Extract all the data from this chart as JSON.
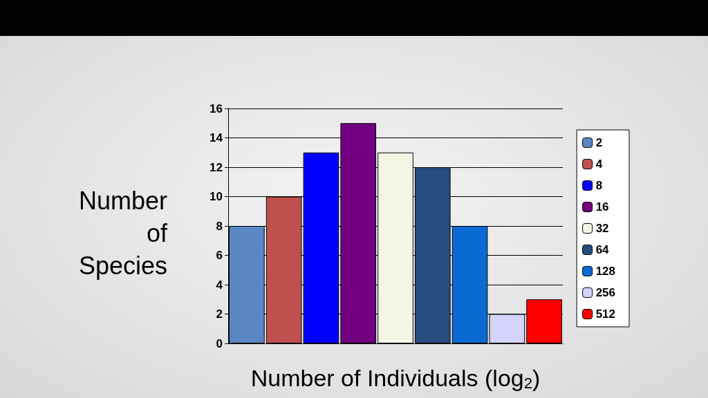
{
  "chart_data": {
    "type": "bar",
    "xlabel": "Number of Individuals (log$_{2}$)",
    "ylabel": "Number\nof\nSpecies",
    "categories": [
      null,
      null,
      null,
      null,
      null,
      null,
      null,
      null,
      null
    ],
    "series": [
      {
        "name": "2",
        "color": "#5b87c5",
        "values": [
          8,
          null,
          null,
          null,
          null,
          null,
          null,
          null,
          null
        ]
      },
      {
        "name": "4",
        "color": "#c0504d",
        "values": [
          null,
          10,
          null,
          null,
          null,
          null,
          null,
          null,
          null
        ]
      },
      {
        "name": "8",
        "color": "#0000ff",
        "values": [
          null,
          null,
          13,
          null,
          null,
          null,
          null,
          null,
          null
        ]
      },
      {
        "name": "16",
        "color": "#730080",
        "values": [
          null,
          null,
          null,
          15,
          null,
          null,
          null,
          null,
          null
        ]
      },
      {
        "name": "32",
        "color": "#f5f5e6",
        "values": [
          null,
          null,
          null,
          null,
          13,
          null,
          null,
          null,
          null
        ]
      },
      {
        "name": "64",
        "color": "#264c80",
        "values": [
          null,
          null,
          null,
          null,
          null,
          12,
          null,
          null,
          null
        ]
      },
      {
        "name": "128",
        "color": "#0a6ad4",
        "values": [
          null,
          null,
          null,
          null,
          null,
          null,
          8,
          null,
          null
        ]
      },
      {
        "name": "256",
        "color": "#d4d4fc",
        "values": [
          null,
          null,
          null,
          null,
          null,
          null,
          null,
          2,
          null
        ]
      },
      {
        "name": "512",
        "color": "#ff0000",
        "values": [
          null,
          null,
          null,
          null,
          null,
          null,
          null,
          null,
          3
        ]
      }
    ],
    "ylim": [
      0,
      16
    ],
    "yticks": [
      0,
      2,
      4,
      6,
      8,
      10,
      12,
      14,
      16
    ],
    "grid": "y",
    "legend": "right"
  }
}
